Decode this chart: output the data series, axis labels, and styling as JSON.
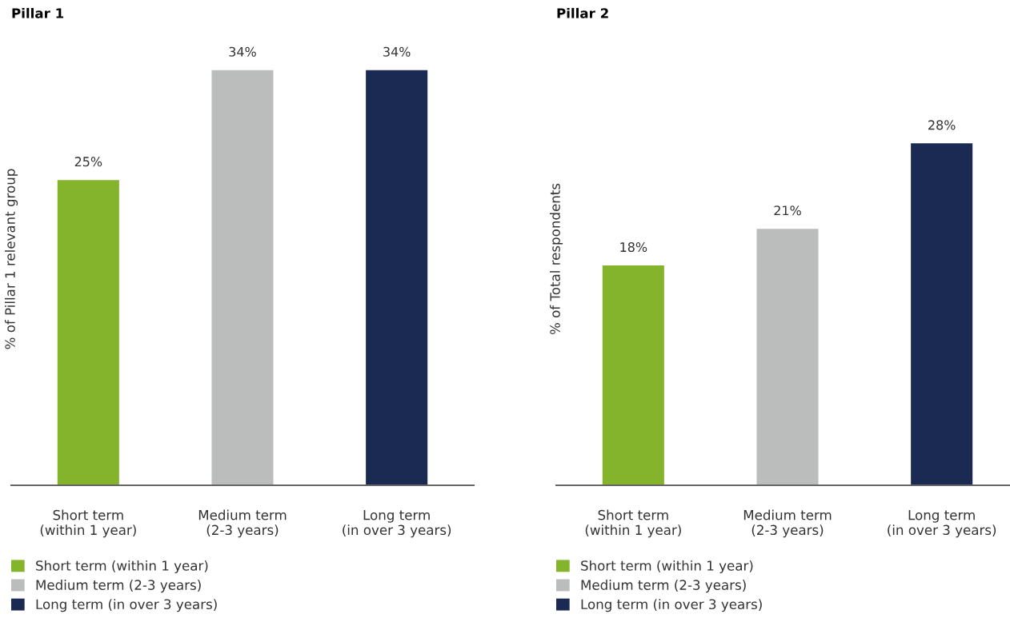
{
  "chart_data": [
    {
      "type": "bar",
      "title": "Pillar 1",
      "ylabel": "% of Pillar 1 relevant group",
      "categories": [
        "Short term\n(within 1 year)",
        "Medium term\n(2-3 years)",
        "Long term\n(in over 3 years)"
      ],
      "series": [
        {
          "name": "Short term (within 1 year)",
          "color": "#84b32c",
          "values": [
            25,
            null,
            null
          ],
          "value_labels": [
            "25%",
            null,
            null
          ]
        },
        {
          "name": "Medium term (2-3 years)",
          "color": "#bbbcbc",
          "values": [
            null,
            34,
            null
          ],
          "value_labels": [
            null,
            "34%",
            null
          ]
        },
        {
          "name": "Long term (in over 3 years)",
          "color": "#1b2a52",
          "values": [
            null,
            null,
            34
          ],
          "value_labels": [
            null,
            null,
            "34%"
          ]
        }
      ],
      "tick_labels": "x",
      "legend": "bottom"
    },
    {
      "type": "bar",
      "title": "Pillar 2",
      "ylabel": "% of Total respondents",
      "categories": [
        "Short term\n(within 1 year)",
        "Medium term\n(2-3 years)",
        "Long term\n(in over 3 years)"
      ],
      "series": [
        {
          "name": "Short term (within 1 year)",
          "color": "#84b32c",
          "values": [
            18,
            null,
            null
          ],
          "value_labels": [
            "18%",
            null,
            null
          ]
        },
        {
          "name": "Medium term (2-3 years)",
          "color": "#bbbcbc",
          "values": [
            null,
            21,
            null
          ],
          "value_labels": [
            null,
            "21%",
            null
          ]
        },
        {
          "name": "Long term (in over 3 years)",
          "color": "#1b2a52",
          "values": [
            null,
            null,
            28
          ],
          "value_labels": [
            null,
            null,
            "28%"
          ]
        }
      ],
      "tick_labels": "x",
      "legend": "bottom"
    }
  ]
}
